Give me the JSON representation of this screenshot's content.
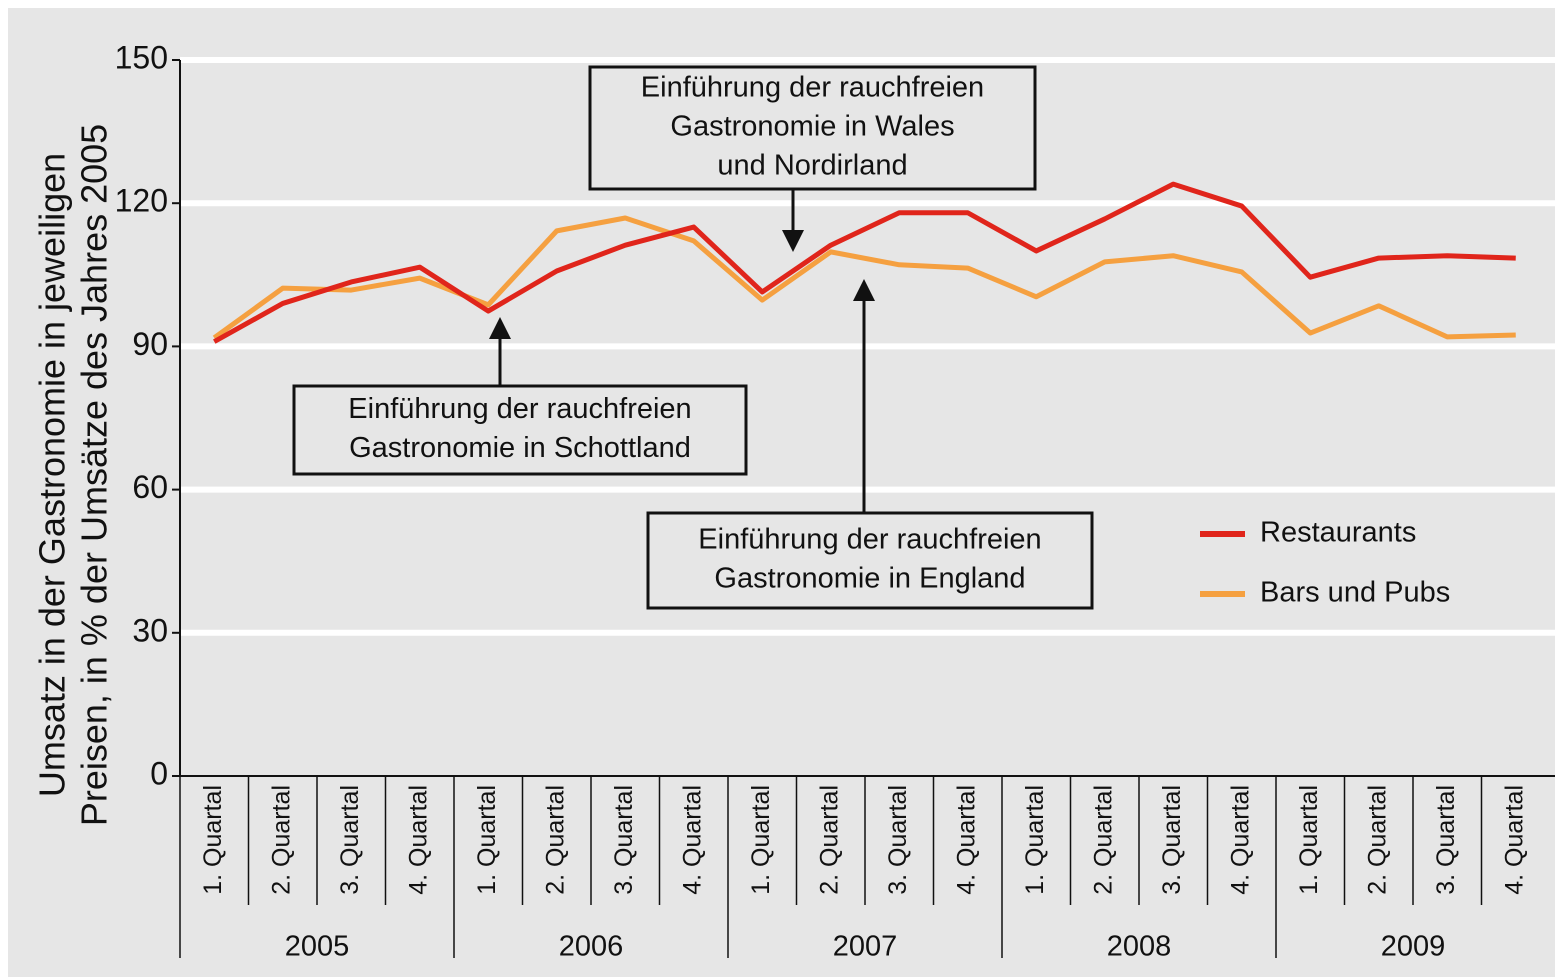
{
  "chart_data": {
    "type": "line",
    "ylabel": [
      "Umsatz in der Gastronomie in jeweiligen",
      "Preisen, in % der Umsätze des Jahres 2005"
    ],
    "categories": [
      "1. Quartal",
      "2. Quartal",
      "3. Quartal",
      "4. Quartal",
      "1. Quartal",
      "2. Quartal",
      "3. Quartal",
      "4. Quartal",
      "1. Quartal",
      "2. Quartal",
      "3. Quartal",
      "4. Quartal",
      "1. Quartal",
      "2. Quartal",
      "3. Quartal",
      "4. Quartal",
      "1. Quartal",
      "2. Quartal",
      "3. Quartal",
      "4. Quartal"
    ],
    "years": [
      "2005",
      "2006",
      "2007",
      "2008",
      "2009"
    ],
    "series": [
      {
        "name": "Restaurants",
        "color": "#e0251b",
        "values": [
          91,
          99,
          103.5,
          106.6,
          97.4,
          105.8,
          111.2,
          115,
          101.4,
          111.2,
          118,
          118,
          110,
          116.7,
          124,
          119.4,
          104.5,
          108.5,
          109,
          108.5
        ]
      },
      {
        "name": "Bars und Pubs",
        "color": "#f5a040",
        "values": [
          91.8,
          102.2,
          101.8,
          104.3,
          98.7,
          114.2,
          116.9,
          112.1,
          99.7,
          109.8,
          107.1,
          106.4,
          100.4,
          107.7,
          109,
          105.6,
          92.8,
          98.5,
          92,
          92.4
        ]
      }
    ],
    "annotations": [
      [
        "Einführung der rauchfreien",
        "Gastronomie in Wales",
        "und Nordirland"
      ],
      [
        "Einführung der rauchfreien",
        "Gastronomie in Schottland"
      ],
      [
        "Einführung der rauchfreien",
        "Gastronomie in England"
      ]
    ],
    "ylim": [
      0,
      150
    ],
    "yticks": [
      0,
      30,
      60,
      90,
      120,
      150
    ],
    "grid": true
  }
}
